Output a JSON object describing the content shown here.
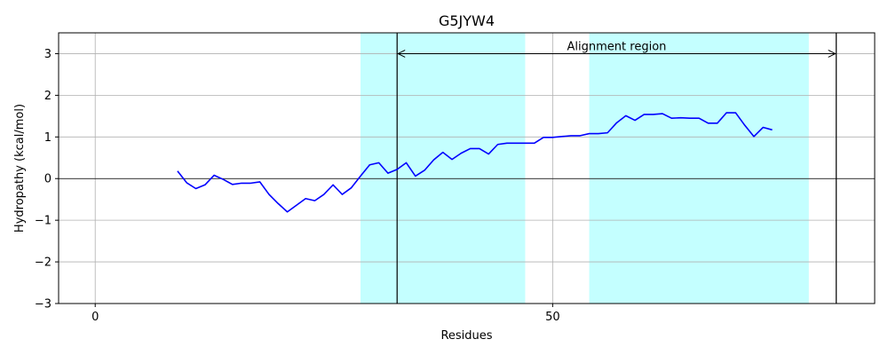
{
  "chart_data": {
    "type": "line",
    "title": "G5JYW4",
    "xlabel": "Residues",
    "ylabel": "Hydropathy (kcal/mol)",
    "xlim": [
      -4,
      85.2
    ],
    "ylim": [
      -3,
      3.5
    ],
    "xticks": [
      0,
      50
    ],
    "yticks": [
      -3,
      -2,
      -1,
      0,
      1,
      2,
      3
    ],
    "grid": true,
    "line_color": "#0000ff",
    "highlight_color": "#c4ffff",
    "highlight_regions": [
      [
        29,
        47
      ],
      [
        54,
        78
      ]
    ],
    "vertical_lines": [
      33,
      81
    ],
    "annotation": {
      "text": "Alignment region",
      "arrow_from": 33,
      "arrow_to": 81,
      "arrow_y": 3
    },
    "series": [
      {
        "x": [
          9,
          10,
          11,
          12,
          13,
          14,
          15,
          16,
          17,
          18,
          19,
          20,
          21,
          22,
          23,
          24,
          25,
          26,
          27,
          28,
          29,
          30,
          31,
          32,
          33,
          34,
          35,
          36,
          37,
          38,
          39,
          40,
          41,
          42,
          43,
          44,
          45,
          46,
          47,
          48,
          49,
          50,
          51,
          52,
          53,
          54,
          55,
          56,
          57,
          58,
          59,
          60,
          61,
          62,
          63,
          64,
          65,
          66,
          67,
          68,
          69,
          70,
          71,
          72,
          73,
          74
        ],
        "y": [
          0.18,
          -0.1,
          -0.24,
          -0.15,
          0.08,
          -0.02,
          -0.14,
          -0.11,
          -0.11,
          -0.08,
          -0.38,
          -0.6,
          -0.8,
          -0.64,
          -0.48,
          -0.53,
          -0.38,
          -0.15,
          -0.38,
          -0.22,
          0.06,
          0.33,
          0.38,
          0.13,
          0.22,
          0.38,
          0.06,
          0.2,
          0.45,
          0.63,
          0.46,
          0.61,
          0.72,
          0.72,
          0.59,
          0.82,
          0.85,
          0.85,
          0.85,
          0.85,
          0.99,
          0.99,
          1.01,
          1.03,
          1.03,
          1.08,
          1.08,
          1.1,
          1.34,
          1.51,
          1.4,
          1.54,
          1.54,
          1.56,
          1.45,
          1.46,
          1.45,
          1.45,
          1.33,
          1.33,
          1.58,
          1.58,
          1.28,
          1.01,
          1.23,
          1.17
        ]
      }
    ]
  }
}
